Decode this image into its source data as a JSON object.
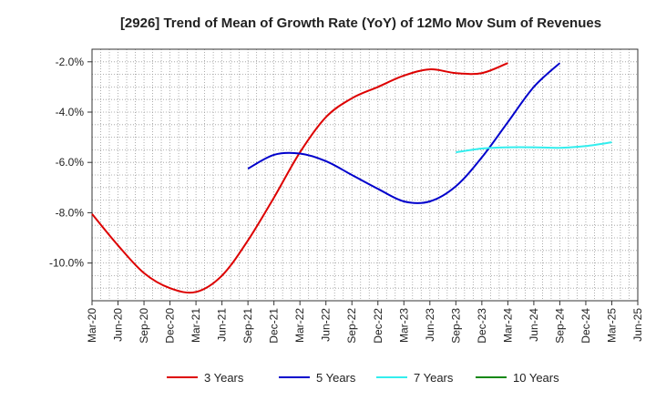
{
  "chart_data": {
    "type": "line",
    "title": "[2926]  Trend of Mean of Growth Rate (YoY) of 12Mo Mov Sum of Revenues",
    "xlabel": "",
    "ylabel": "",
    "ylim": [
      -11.5,
      -1.5
    ],
    "yticks": [
      -2.0,
      -4.0,
      -6.0,
      -8.0,
      -10.0
    ],
    "ytick_labels": [
      "-2.0%",
      "-4.0%",
      "-6.0%",
      "-8.0%",
      "-10.0%"
    ],
    "x_labels": [
      "Mar-20",
      "Jun-20",
      "Sep-20",
      "Dec-20",
      "Mar-21",
      "Jun-21",
      "Sep-21",
      "Dec-21",
      "Mar-22",
      "Jun-22",
      "Sep-22",
      "Dec-22",
      "Mar-23",
      "Jun-23",
      "Sep-23",
      "Dec-23",
      "Mar-24",
      "Jun-24",
      "Sep-24",
      "Dec-24",
      "Mar-25",
      "Jun-25"
    ],
    "grid": true,
    "series": [
      {
        "name": "3 Years",
        "color": "#dd0000",
        "values": [
          -8.05,
          -9.3,
          -10.4,
          -11.0,
          -11.15,
          -10.5,
          -9.1,
          -7.4,
          -5.6,
          -4.2,
          -3.45,
          -3.0,
          -2.55,
          -2.3,
          -2.45,
          -2.45,
          -2.05
        ]
      },
      {
        "name": "5 Years",
        "color": "#0000cc",
        "values": [
          null,
          null,
          null,
          null,
          null,
          null,
          -6.25,
          -5.7,
          -5.65,
          -5.95,
          -6.5,
          -7.05,
          -7.55,
          -7.55,
          -6.95,
          -5.8,
          -4.4,
          -3.0,
          -2.05
        ]
      },
      {
        "name": "7 Years",
        "color": "#33eeee",
        "values": [
          null,
          null,
          null,
          null,
          null,
          null,
          null,
          null,
          null,
          null,
          null,
          null,
          null,
          null,
          -5.6,
          -5.45,
          -5.4,
          -5.4,
          -5.42,
          -5.35,
          -5.2
        ]
      },
      {
        "name": "10 Years",
        "color": "#118811",
        "values": []
      }
    ]
  }
}
